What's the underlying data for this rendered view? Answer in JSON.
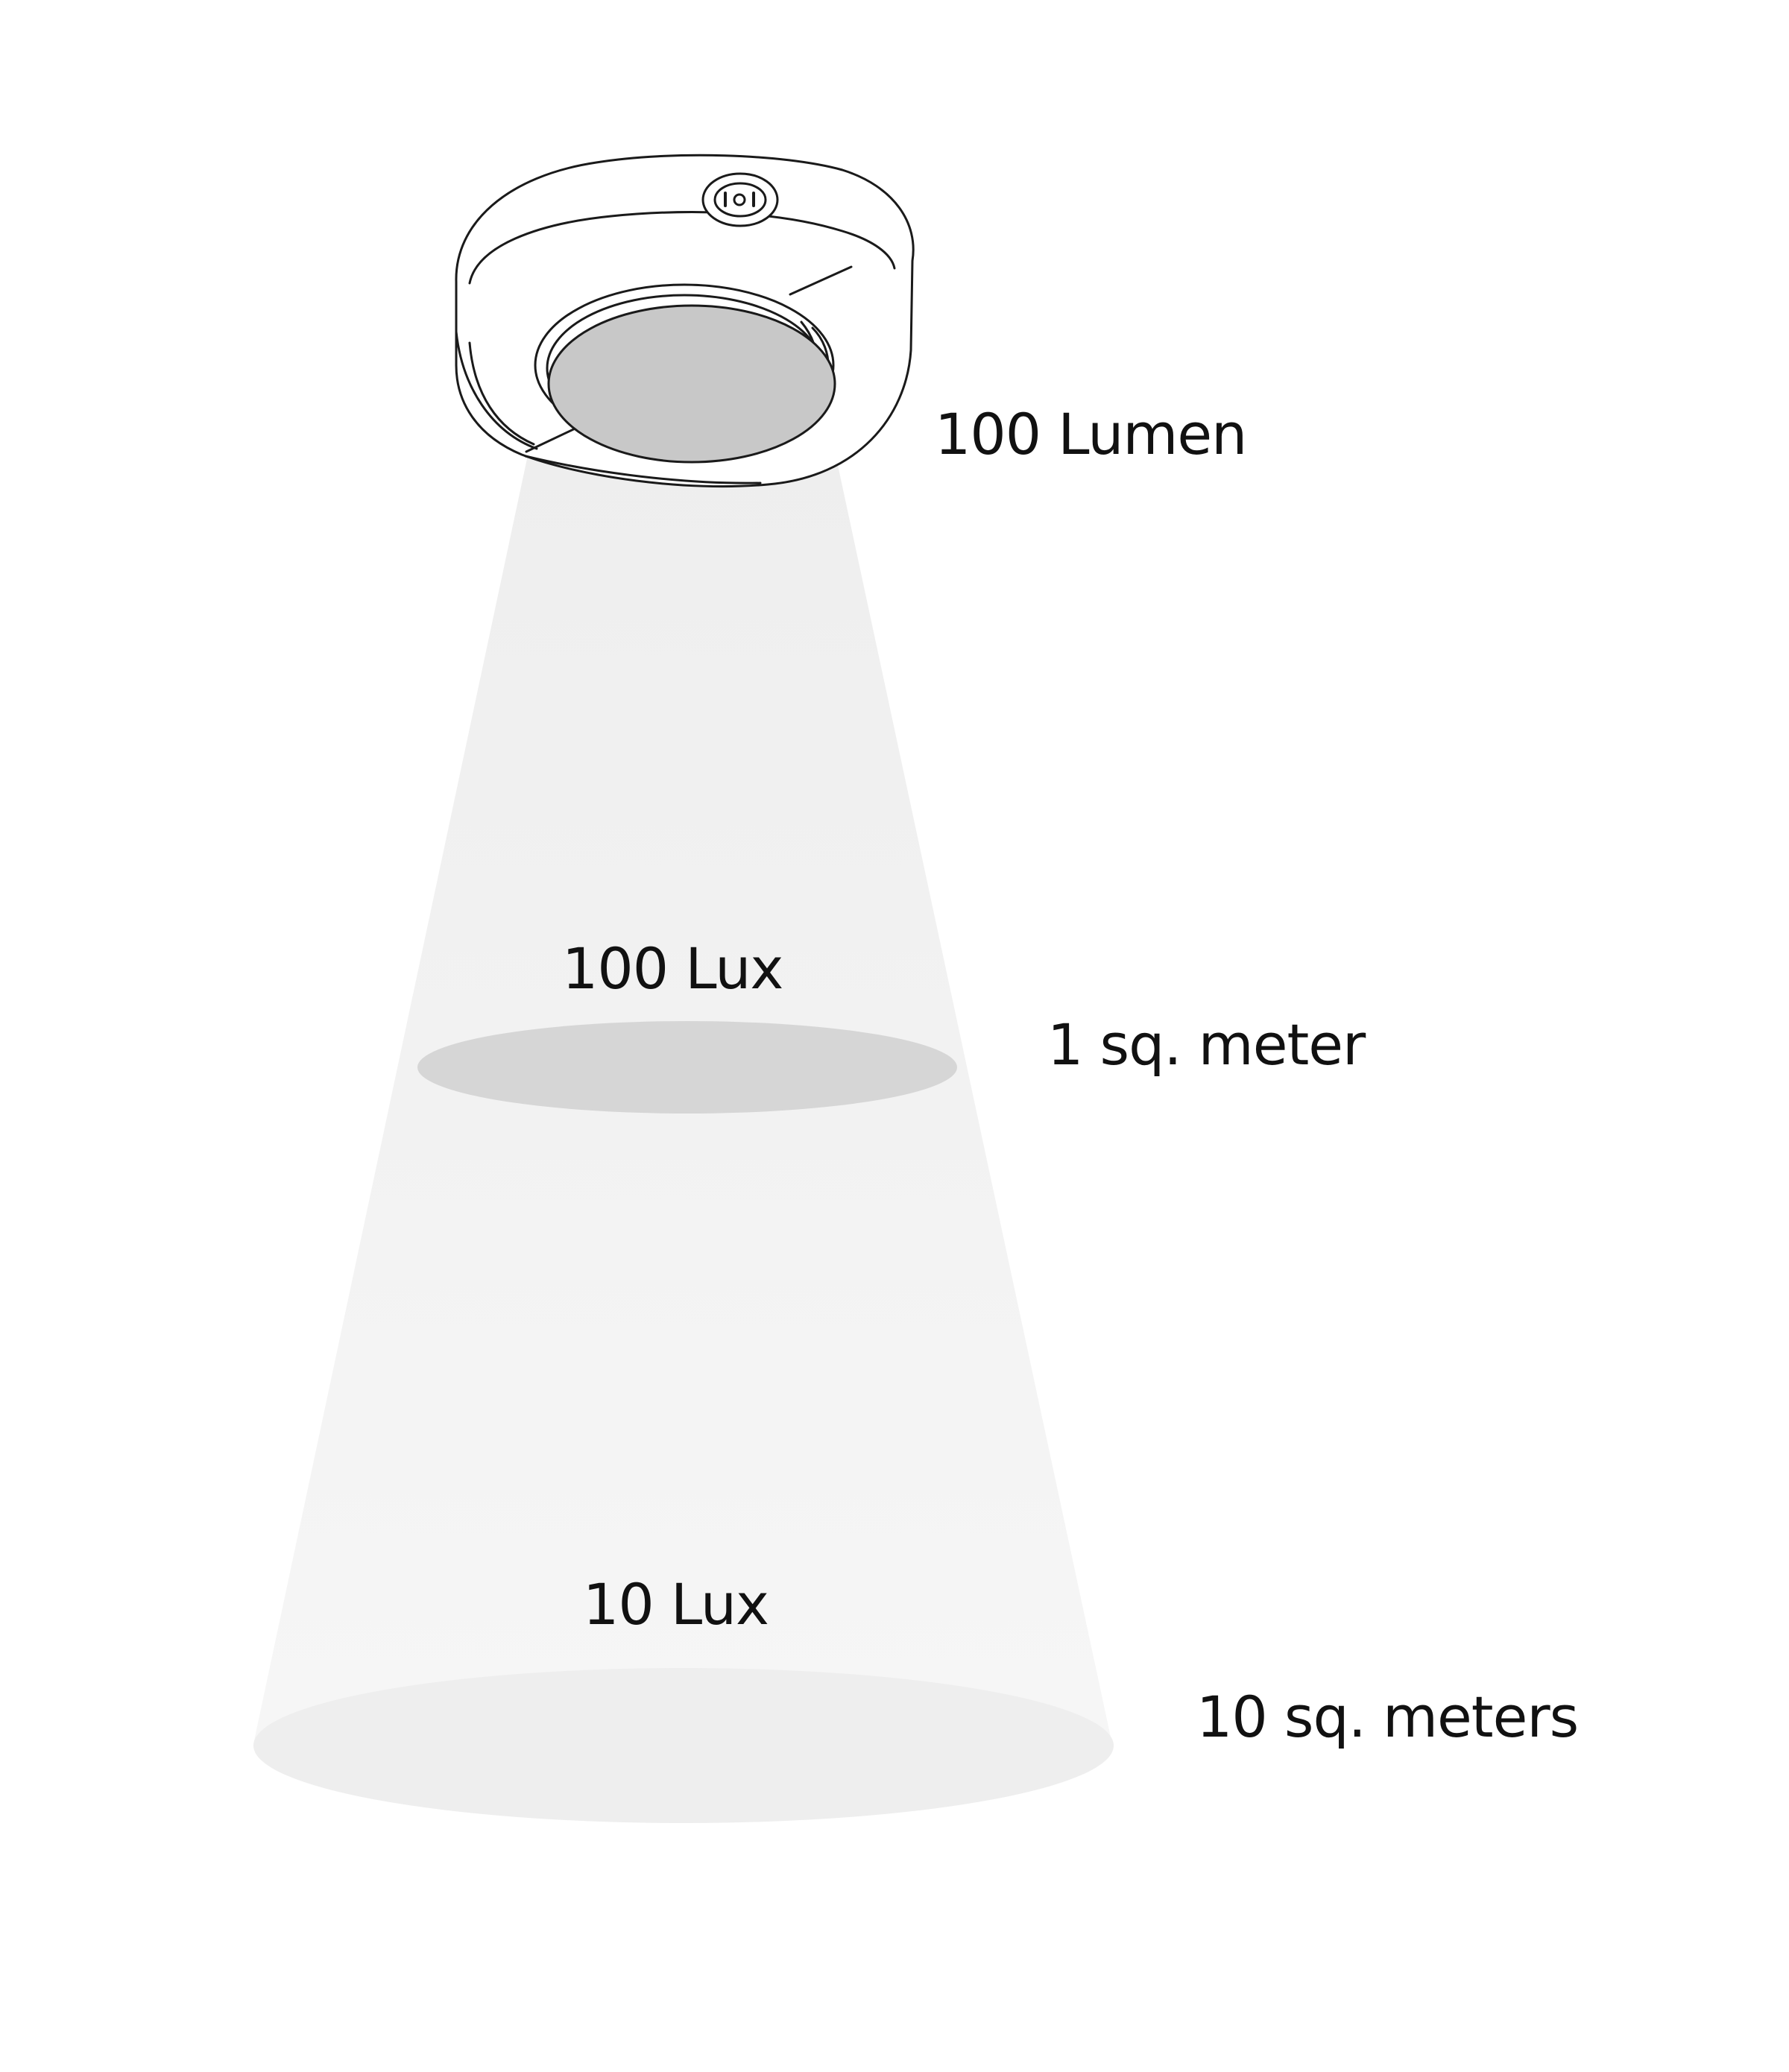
{
  "source": {
    "output_label": "100 Lumen"
  },
  "levels": [
    {
      "illuminance_label": "100 Lux",
      "area_label": "1 sq. meter"
    },
    {
      "illuminance_label": "10 Lux",
      "area_label": "10 sq. meters"
    }
  ],
  "colors": {
    "beam": "#f2f2f2",
    "near_ellipse": "#d6d6d6",
    "far_ellipse": "#ececec",
    "lens": "#c8c8c8",
    "outline": "#1a1a1a",
    "text": "#111111"
  },
  "icons": [
    "ceiling-light-icon",
    "power-switch-icon"
  ]
}
